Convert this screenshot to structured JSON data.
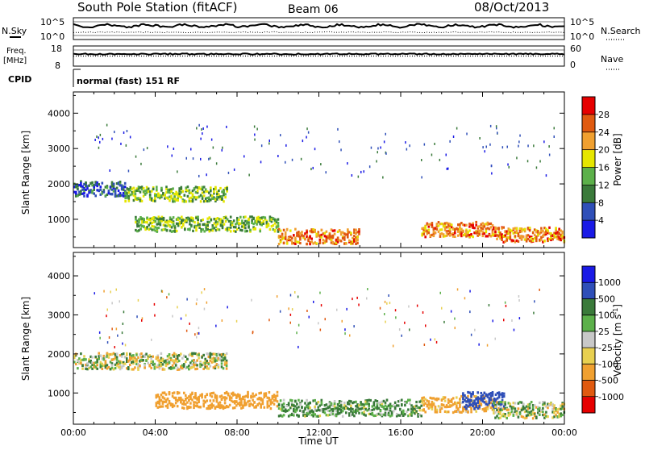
{
  "header": {
    "station": "South Pole Station (fitACF)",
    "beam": "Beam 06",
    "date": "08/Oct/2013"
  },
  "strip": {
    "nsky_label": "N.Sky",
    "nsearch_label": "N.Search",
    "noise_tick_top": "10^5",
    "noise_tick_bottom": "10^0",
    "freq_label_line1": "Freq.",
    "freq_label_line2": "[MHz]",
    "freq_tick_top": "18",
    "freq_tick_bottom": "8",
    "nave_label": "Nave",
    "nave_tick_top": "60",
    "nave_tick_bottom": "0",
    "cpid_label": "CPID",
    "cpid_value": "normal (fast) 151 RF"
  },
  "colors": {
    "power_scale": [
      "#1a1ae6",
      "#2f4fb8",
      "#3a7a3a",
      "#5cb04a",
      "#e6e600",
      "#f0a030",
      "#e05a10",
      "#e60000"
    ],
    "velocity_scale": [
      "#e60000",
      "#e05a10",
      "#f0a030",
      "#e8d050",
      "#c8c8c8",
      "#5cb04a",
      "#3a7a3a",
      "#2f4fb8",
      "#1a1ae6"
    ]
  },
  "chart_data": [
    {
      "type": "heatmap",
      "panel": "power",
      "ylabel": "Slant Range [km]",
      "yticks": [
        1000,
        2000,
        3000,
        4000
      ],
      "ylim": [
        200,
        4600
      ],
      "xlim_hours": [
        0,
        24
      ],
      "colorbar": {
        "label": "Power [dB]",
        "ticks": [
          "4",
          "8",
          "12",
          "16",
          "20",
          "24",
          "28"
        ],
        "range": [
          0,
          32
        ]
      },
      "features": [
        {
          "range_km": 1850,
          "hours": [
            0,
            2.5
          ],
          "level": "low"
        },
        {
          "range_km": 1700,
          "hours": [
            2.5,
            7.5
          ],
          "level": "mid"
        },
        {
          "range_km": 850,
          "hours": [
            3,
            10
          ],
          "level": "mid"
        },
        {
          "range_km": 500,
          "hours": [
            10,
            14
          ],
          "level": "high"
        },
        {
          "range_km": 700,
          "hours": [
            17,
            20.5
          ],
          "level": "high"
        },
        {
          "range_km": 550,
          "hours": [
            20.5,
            24
          ],
          "level": "high"
        }
      ]
    },
    {
      "type": "heatmap",
      "panel": "velocity",
      "ylabel": "Slant Range [km]",
      "xlabel": "Time UT",
      "xticks": [
        "00:00",
        "04:00",
        "08:00",
        "12:00",
        "16:00",
        "20:00",
        "00:00"
      ],
      "yticks": [
        1000,
        2000,
        3000,
        4000
      ],
      "ylim": [
        200,
        4600
      ],
      "xlim_hours": [
        0,
        24
      ],
      "colorbar": {
        "label": "Velocity [m s^-1]",
        "ticks": [
          "-1000",
          "-500",
          "-100",
          "-25",
          "25",
          "100",
          "500",
          "1000"
        ],
        "range": [
          -1500,
          1500
        ]
      },
      "features": [
        {
          "range_km": 1800,
          "hours": [
            0,
            7.5
          ],
          "velocity": 0
        },
        {
          "range_km": 800,
          "hours": [
            4,
            10
          ],
          "velocity": -300
        },
        {
          "range_km": 600,
          "hours": [
            10,
            17
          ],
          "velocity": 150
        },
        {
          "range_km": 700,
          "hours": [
            17,
            20.5
          ],
          "velocity": -200
        },
        {
          "range_km": 800,
          "hours": [
            19,
            21
          ],
          "velocity": 800
        },
        {
          "range_km": 550,
          "hours": [
            20.5,
            24
          ],
          "velocity": 50
        }
      ]
    }
  ]
}
